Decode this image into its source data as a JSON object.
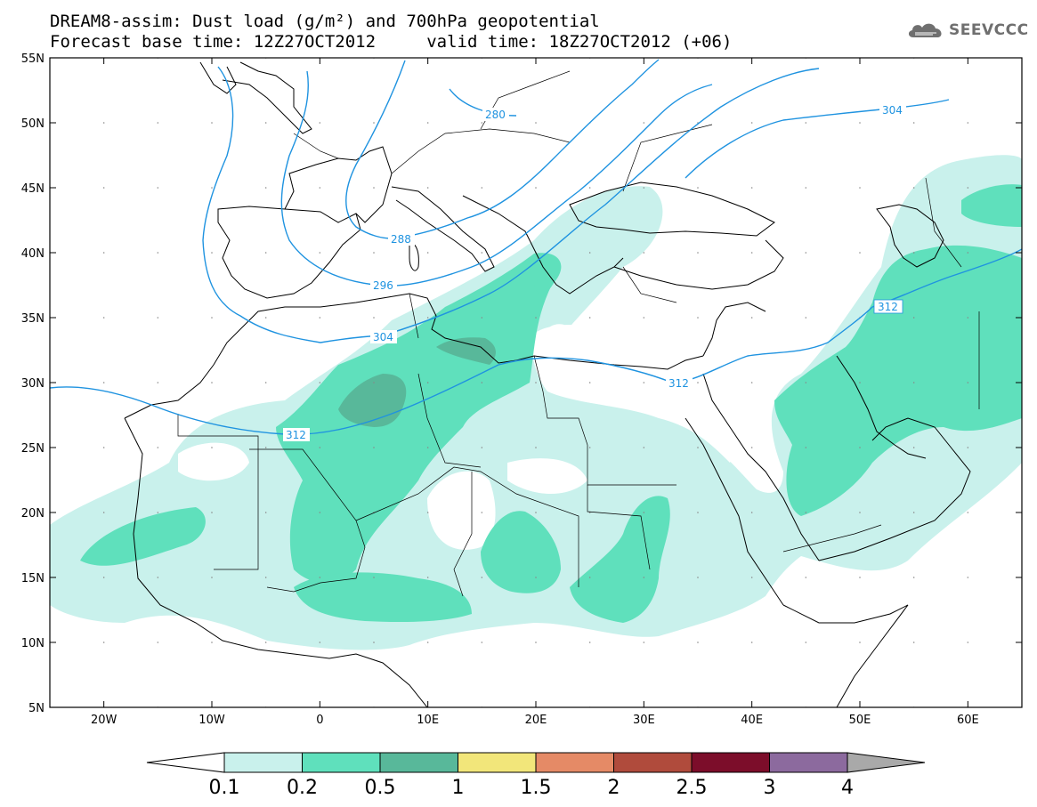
{
  "title": {
    "line1": "DREAM8-assim: Dust load (g/m²) and 700hPa geopotential",
    "line2": "Forecast base time: 12Z27OCT2012     valid time: 18Z27OCT2012 (+06)"
  },
  "logo": {
    "text": "SEEVCCC",
    "icon": "cloud-icon"
  },
  "map": {
    "lon_range": [
      -25,
      65
    ],
    "lat_range": [
      5,
      55
    ],
    "lat_ticks": [
      "55N",
      "50N",
      "45N",
      "40N",
      "35N",
      "30N",
      "25N",
      "20N",
      "15N",
      "10N",
      "5N"
    ],
    "lon_ticks": [
      "20W",
      "10W",
      "0",
      "10E",
      "20E",
      "30E",
      "40E",
      "50E",
      "60E"
    ],
    "contour_labels": [
      "280",
      "288",
      "296",
      "304",
      "312",
      "312",
      "312",
      "304"
    ],
    "contour_color": "#1f93e0"
  },
  "colorbar": {
    "labels": [
      "0.1",
      "0.2",
      "0.5",
      "1",
      "1.5",
      "2",
      "2.5",
      "3",
      "4"
    ],
    "colors": [
      "#c9f1ec",
      "#5fe0bc",
      "#58b89a",
      "#f2e67a",
      "#e58a66",
      "#b04b3c",
      "#7c0d2a",
      "#8c6a9e",
      "#a9a9a9"
    ]
  }
}
